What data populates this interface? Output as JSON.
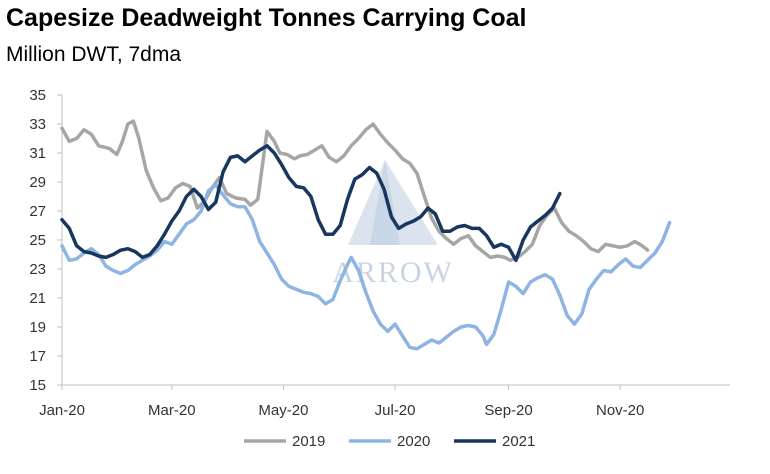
{
  "chart_data": {
    "type": "line",
    "title": "Capesize Deadweight Tonnes Carrying Coal",
    "subtitle": "Million DWT, 7dma",
    "ylim": [
      15,
      35
    ],
    "yticks": [
      15,
      17,
      19,
      21,
      23,
      25,
      27,
      29,
      31,
      33,
      35
    ],
    "xlim": [
      0,
      365
    ],
    "xticks": [
      {
        "label": "Jan-20",
        "day": 0
      },
      {
        "label": "Mar-20",
        "day": 60
      },
      {
        "label": "May-20",
        "day": 121
      },
      {
        "label": "Jul-20",
        "day": 182
      },
      {
        "label": "Sep-20",
        "day": 244
      },
      {
        "label": "Nov-20",
        "day": 305
      }
    ],
    "grid": false,
    "legend_position": "bottom",
    "watermark": "ARROW",
    "series": [
      {
        "name": "2019",
        "color": "#a6a6a6",
        "points": [
          [
            0,
            32.7
          ],
          [
            4,
            31.8
          ],
          [
            8,
            32.0
          ],
          [
            12,
            32.6
          ],
          [
            16,
            32.3
          ],
          [
            20,
            31.5
          ],
          [
            26,
            31.3
          ],
          [
            30,
            30.9
          ],
          [
            33,
            31.8
          ],
          [
            36,
            33.0
          ],
          [
            39,
            33.2
          ],
          [
            42,
            32.0
          ],
          [
            46,
            29.8
          ],
          [
            50,
            28.6
          ],
          [
            54,
            27.7
          ],
          [
            58,
            27.9
          ],
          [
            62,
            28.6
          ],
          [
            66,
            28.9
          ],
          [
            70,
            28.7
          ],
          [
            74,
            27.2
          ],
          [
            78,
            27.7
          ],
          [
            82,
            28.6
          ],
          [
            86,
            29.3
          ],
          [
            90,
            28.2
          ],
          [
            95,
            27.9
          ],
          [
            100,
            27.8
          ],
          [
            103,
            27.4
          ],
          [
            107,
            27.8
          ],
          [
            112,
            32.5
          ],
          [
            116,
            31.8
          ],
          [
            119,
            31.0
          ],
          [
            123,
            30.9
          ],
          [
            127,
            30.6
          ],
          [
            130,
            30.8
          ],
          [
            134,
            30.9
          ],
          [
            138,
            31.2
          ],
          [
            142,
            31.5
          ],
          [
            146,
            30.7
          ],
          [
            150,
            30.4
          ],
          [
            154,
            30.8
          ],
          [
            158,
            31.5
          ],
          [
            162,
            32.0
          ],
          [
            166,
            32.6
          ],
          [
            170,
            33.0
          ],
          [
            174,
            32.3
          ],
          [
            178,
            31.7
          ],
          [
            182,
            31.2
          ],
          [
            186,
            30.6
          ],
          [
            190,
            30.3
          ],
          [
            194,
            29.6
          ],
          [
            198,
            28.0
          ],
          [
            202,
            26.5
          ],
          [
            206,
            25.6
          ],
          [
            210,
            25.1
          ],
          [
            214,
            24.7
          ],
          [
            218,
            25.1
          ],
          [
            222,
            25.3
          ],
          [
            226,
            24.6
          ],
          [
            230,
            24.2
          ],
          [
            234,
            23.8
          ],
          [
            238,
            23.9
          ],
          [
            242,
            23.8
          ],
          [
            245,
            23.6
          ],
          [
            249,
            23.8
          ],
          [
            253,
            24.2
          ],
          [
            257,
            24.7
          ],
          [
            261,
            26.0
          ],
          [
            265,
            26.7
          ],
          [
            269,
            27.2
          ],
          [
            273,
            26.2
          ],
          [
            277,
            25.6
          ],
          [
            281,
            25.3
          ],
          [
            285,
            24.9
          ],
          [
            289,
            24.4
          ],
          [
            293,
            24.2
          ],
          [
            297,
            24.7
          ],
          [
            301,
            24.6
          ],
          [
            305,
            24.5
          ],
          [
            309,
            24.6
          ],
          [
            313,
            24.9
          ],
          [
            317,
            24.6
          ],
          [
            320,
            24.3
          ]
        ]
      },
      {
        "name": "2020",
        "color": "#8eb4e3",
        "points": [
          [
            0,
            24.6
          ],
          [
            4,
            23.6
          ],
          [
            8,
            23.7
          ],
          [
            12,
            24.1
          ],
          [
            16,
            24.4
          ],
          [
            20,
            24.0
          ],
          [
            24,
            23.2
          ],
          [
            28,
            22.9
          ],
          [
            32,
            22.7
          ],
          [
            36,
            22.9
          ],
          [
            40,
            23.3
          ],
          [
            44,
            23.6
          ],
          [
            48,
            23.9
          ],
          [
            52,
            24.3
          ],
          [
            56,
            24.9
          ],
          [
            60,
            24.7
          ],
          [
            64,
            25.4
          ],
          [
            68,
            26.1
          ],
          [
            72,
            26.4
          ],
          [
            76,
            27.0
          ],
          [
            80,
            28.4
          ],
          [
            84,
            28.8
          ],
          [
            88,
            28.1
          ],
          [
            92,
            27.5
          ],
          [
            96,
            27.3
          ],
          [
            100,
            27.3
          ],
          [
            104,
            26.4
          ],
          [
            108,
            24.9
          ],
          [
            112,
            24.1
          ],
          [
            116,
            23.3
          ],
          [
            120,
            22.3
          ],
          [
            124,
            21.8
          ],
          [
            128,
            21.6
          ],
          [
            132,
            21.4
          ],
          [
            136,
            21.3
          ],
          [
            140,
            21.1
          ],
          [
            144,
            20.6
          ],
          [
            148,
            20.9
          ],
          [
            152,
            22.2
          ],
          [
            156,
            23.3
          ],
          [
            158,
            23.8
          ],
          [
            162,
            22.9
          ],
          [
            166,
            21.4
          ],
          [
            170,
            20.1
          ],
          [
            174,
            19.2
          ],
          [
            178,
            18.7
          ],
          [
            182,
            19.2
          ],
          [
            186,
            18.4
          ],
          [
            190,
            17.6
          ],
          [
            194,
            17.5
          ],
          [
            198,
            17.8
          ],
          [
            202,
            18.1
          ],
          [
            206,
            17.9
          ],
          [
            210,
            18.3
          ],
          [
            214,
            18.7
          ],
          [
            218,
            19.0
          ],
          [
            222,
            19.1
          ],
          [
            226,
            19.0
          ],
          [
            230,
            18.4
          ],
          [
            232,
            17.8
          ],
          [
            236,
            18.5
          ],
          [
            240,
            20.2
          ],
          [
            244,
            22.1
          ],
          [
            248,
            21.8
          ],
          [
            252,
            21.3
          ],
          [
            256,
            22.1
          ],
          [
            260,
            22.4
          ],
          [
            264,
            22.6
          ],
          [
            268,
            22.3
          ],
          [
            272,
            21.2
          ],
          [
            276,
            19.8
          ],
          [
            280,
            19.2
          ],
          [
            284,
            19.9
          ],
          [
            288,
            21.6
          ],
          [
            292,
            22.3
          ],
          [
            296,
            22.9
          ],
          [
            300,
            22.8
          ],
          [
            304,
            23.3
          ],
          [
            308,
            23.7
          ],
          [
            312,
            23.2
          ],
          [
            316,
            23.1
          ],
          [
            320,
            23.6
          ],
          [
            324,
            24.1
          ],
          [
            328,
            24.9
          ],
          [
            332,
            26.2
          ]
        ]
      },
      {
        "name": "2021",
        "color": "#17375e",
        "points": [
          [
            0,
            26.4
          ],
          [
            4,
            25.8
          ],
          [
            8,
            24.6
          ],
          [
            12,
            24.2
          ],
          [
            16,
            24.1
          ],
          [
            20,
            23.9
          ],
          [
            24,
            23.8
          ],
          [
            28,
            24.0
          ],
          [
            32,
            24.3
          ],
          [
            36,
            24.4
          ],
          [
            40,
            24.2
          ],
          [
            44,
            23.8
          ],
          [
            48,
            24.0
          ],
          [
            52,
            24.6
          ],
          [
            56,
            25.4
          ],
          [
            60,
            26.3
          ],
          [
            64,
            27.0
          ],
          [
            68,
            28.0
          ],
          [
            72,
            28.5
          ],
          [
            76,
            28.0
          ],
          [
            80,
            27.1
          ],
          [
            84,
            27.6
          ],
          [
            88,
            29.7
          ],
          [
            92,
            30.7
          ],
          [
            96,
            30.8
          ],
          [
            100,
            30.4
          ],
          [
            104,
            30.8
          ],
          [
            108,
            31.2
          ],
          [
            112,
            31.5
          ],
          [
            116,
            31.0
          ],
          [
            120,
            30.2
          ],
          [
            124,
            29.3
          ],
          [
            128,
            28.7
          ],
          [
            132,
            28.6
          ],
          [
            136,
            28.0
          ],
          [
            140,
            26.4
          ],
          [
            144,
            25.4
          ],
          [
            148,
            25.4
          ],
          [
            152,
            26.0
          ],
          [
            156,
            27.8
          ],
          [
            160,
            29.2
          ],
          [
            164,
            29.5
          ],
          [
            168,
            30.0
          ],
          [
            172,
            29.6
          ],
          [
            176,
            28.5
          ],
          [
            180,
            26.6
          ],
          [
            184,
            25.8
          ],
          [
            188,
            26.1
          ],
          [
            192,
            26.3
          ],
          [
            196,
            26.6
          ],
          [
            200,
            27.2
          ],
          [
            204,
            26.8
          ],
          [
            208,
            25.6
          ],
          [
            212,
            25.6
          ],
          [
            216,
            25.9
          ],
          [
            220,
            26.0
          ],
          [
            224,
            25.8
          ],
          [
            228,
            25.8
          ],
          [
            232,
            25.3
          ],
          [
            236,
            24.5
          ],
          [
            240,
            24.7
          ],
          [
            244,
            24.5
          ],
          [
            248,
            23.6
          ],
          [
            252,
            25.0
          ],
          [
            256,
            25.9
          ],
          [
            260,
            26.3
          ],
          [
            264,
            26.7
          ],
          [
            268,
            27.2
          ],
          [
            272,
            28.2
          ]
        ]
      }
    ]
  }
}
